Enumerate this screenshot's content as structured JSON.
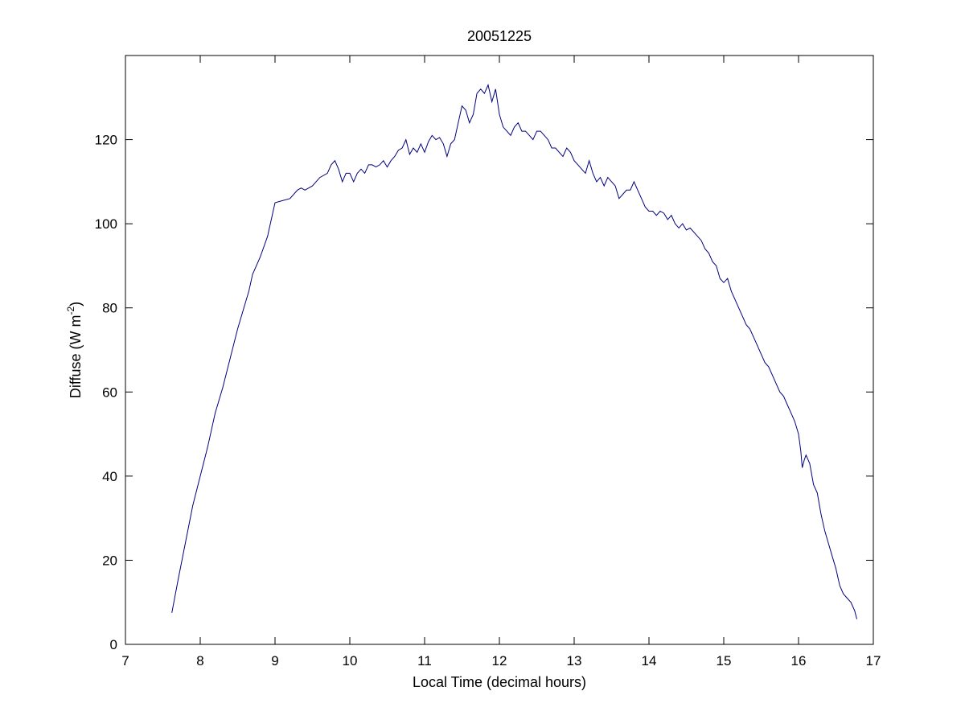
{
  "chart_data": {
    "type": "line",
    "title": "20051225",
    "xlabel": "Local Time (decimal hours)",
    "ylabel_main": "Diffuse (W m",
    "ylabel_sup": "-2",
    "ylabel_close": ")",
    "xlim": [
      7,
      17
    ],
    "ylim": [
      0,
      140
    ],
    "xticks": [
      7,
      8,
      9,
      10,
      11,
      12,
      13,
      14,
      15,
      16,
      17
    ],
    "yticks": [
      0,
      20,
      40,
      60,
      80,
      100,
      120
    ],
    "xtick_labels": [
      "7",
      "8",
      "9",
      "10",
      "11",
      "12",
      "13",
      "14",
      "15",
      "16",
      "17"
    ],
    "ytick_labels": [
      "0",
      "20",
      "40",
      "60",
      "80",
      "100",
      "120"
    ],
    "grid": false,
    "line_color": "#000080",
    "series": [
      {
        "x": [
          7.62,
          7.7,
          7.8,
          7.9,
          8.0,
          8.1,
          8.2,
          8.3,
          8.4,
          8.5,
          8.6,
          8.65,
          8.7,
          8.8,
          8.9,
          9.0,
          9.1,
          9.2,
          9.3,
          9.35,
          9.4,
          9.5,
          9.6,
          9.7,
          9.75,
          9.8,
          9.85,
          9.9,
          9.95,
          10.0,
          10.05,
          10.1,
          10.15,
          10.2,
          10.25,
          10.3,
          10.35,
          10.4,
          10.45,
          10.5,
          10.55,
          10.6,
          10.65,
          10.7,
          10.75,
          10.8,
          10.85,
          10.9,
          10.95,
          11.0,
          11.05,
          11.1,
          11.15,
          11.2,
          11.25,
          11.3,
          11.35,
          11.4,
          11.45,
          11.5,
          11.55,
          11.6,
          11.65,
          11.7,
          11.75,
          11.8,
          11.85,
          11.9,
          11.95,
          12.0,
          12.05,
          12.1,
          12.15,
          12.2,
          12.25,
          12.3,
          12.35,
          12.4,
          12.45,
          12.5,
          12.55,
          12.6,
          12.65,
          12.7,
          12.75,
          12.8,
          12.85,
          12.9,
          12.95,
          13.0,
          13.05,
          13.1,
          13.15,
          13.2,
          13.25,
          13.3,
          13.35,
          13.4,
          13.45,
          13.5,
          13.55,
          13.6,
          13.65,
          13.7,
          13.75,
          13.8,
          13.85,
          13.9,
          13.95,
          14.0,
          14.05,
          14.1,
          14.15,
          14.2,
          14.25,
          14.3,
          14.35,
          14.4,
          14.45,
          14.5,
          14.55,
          14.6,
          14.65,
          14.7,
          14.75,
          14.8,
          14.85,
          14.9,
          14.95,
          15.0,
          15.05,
          15.1,
          15.15,
          15.2,
          15.25,
          15.3,
          15.35,
          15.4,
          15.45,
          15.5,
          15.55,
          15.6,
          15.65,
          15.7,
          15.75,
          15.8,
          15.85,
          15.9,
          15.95,
          16.0,
          16.03,
          16.05,
          16.08,
          16.1,
          16.15,
          16.2,
          16.25,
          16.3,
          16.35,
          16.4,
          16.45,
          16.5,
          16.55,
          16.6,
          16.65,
          16.7,
          16.75,
          16.78
        ],
        "y": [
          7.5,
          15,
          24,
          33,
          40,
          47,
          55,
          61,
          68,
          75,
          81,
          84,
          88,
          92,
          97,
          105,
          105.5,
          106,
          108,
          108.5,
          108,
          109,
          111,
          112,
          114,
          115,
          113,
          110,
          112,
          112,
          110,
          112,
          113,
          112,
          114,
          114,
          113.5,
          114,
          115,
          113.5,
          115,
          116,
          117.5,
          118,
          120,
          116.5,
          118,
          117,
          119,
          117,
          119.5,
          121,
          120,
          120.5,
          119,
          116,
          119,
          120,
          124,
          128,
          127,
          124,
          126,
          131,
          132,
          131,
          133,
          129,
          132,
          126,
          123,
          122,
          121,
          123,
          124,
          122,
          122,
          121,
          120,
          122,
          122,
          121,
          120,
          118,
          118,
          117,
          116,
          118,
          117,
          115,
          114,
          113,
          112,
          115,
          112,
          110,
          111,
          109,
          111,
          110,
          109,
          106,
          107,
          108,
          108,
          110,
          108,
          106,
          104,
          103,
          103,
          102,
          103,
          102.5,
          101,
          102,
          100,
          99,
          100,
          98.5,
          99,
          98,
          97,
          96,
          94,
          93,
          91,
          90,
          87,
          86,
          87,
          84,
          82,
          80,
          78,
          76,
          75,
          73,
          71,
          69,
          67,
          66,
          64,
          62,
          60,
          59,
          57,
          55,
          53,
          50,
          46,
          42,
          44,
          45,
          43,
          38,
          36,
          31,
          27,
          24,
          21,
          18,
          14,
          12,
          11,
          10,
          8,
          6
        ]
      }
    ]
  }
}
